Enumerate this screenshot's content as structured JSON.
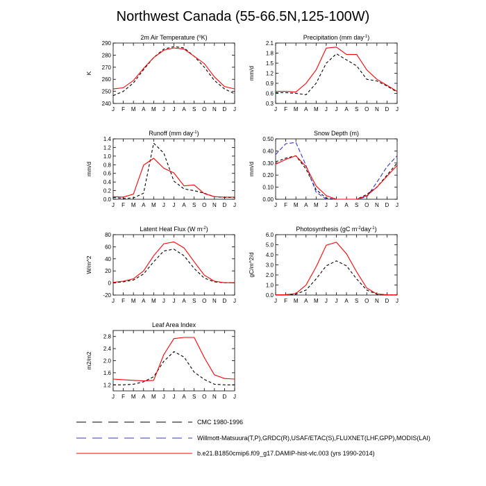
{
  "title": "Northwest Canada (55-66.5N,125-100W)",
  "legend": [
    {
      "label": "CMC 1980-1996",
      "color": "#000000",
      "dash": "6,4"
    },
    {
      "label": "Willmott-Matsuura(T,P),GRDC(R),USAF/ETAC(S),FLUXNET(LHF,GPP),MODIS(LAI)",
      "color": "#3333cc",
      "dash": "6,4"
    },
    {
      "label": "b.e21.B1850cmip6.f09_g17.DAMIP-hist-vlc.003 (yrs 1990-2014)",
      "color": "#ff0000",
      "dash": ""
    }
  ],
  "chart_data": [
    {
      "type": "line",
      "title": "2m Air Temperature (°K)",
      "ylabel": "K",
      "categories": [
        "J",
        "F",
        "M",
        "A",
        "M",
        "J",
        "J",
        "A",
        "S",
        "O",
        "N",
        "D",
        "J"
      ],
      "ylim": [
        240,
        290
      ],
      "yticks": [
        "240",
        "250",
        "260",
        "270",
        "280",
        "290"
      ],
      "series": [
        {
          "style": "obs",
          "color": "#000000",
          "dash": "4,3",
          "values": [
            246.5,
            250,
            257,
            268,
            278,
            285,
            287,
            286,
            279,
            270,
            259,
            252,
            248
          ]
        },
        {
          "style": "model",
          "color": "#ff0000",
          "dash": "",
          "values": [
            252,
            253,
            259,
            269,
            278,
            284,
            286,
            285,
            279,
            273,
            262,
            254,
            252
          ]
        }
      ]
    },
    {
      "type": "line",
      "title": "Precipitation (mm day-1)",
      "ylabel": "mm/d",
      "categories": [
        "J",
        "F",
        "M",
        "A",
        "M",
        "J",
        "J",
        "A",
        "S",
        "O",
        "N",
        "D",
        "J"
      ],
      "ylim": [
        0.3,
        2.1
      ],
      "yticks": [
        "0.3",
        "0.6",
        "0.9",
        "1.2",
        "1.5",
        "1.8",
        "2.1"
      ],
      "series": [
        {
          "style": "obs",
          "color": "#000000",
          "dash": "4,3",
          "values": [
            0.62,
            0.62,
            0.6,
            0.56,
            0.9,
            1.5,
            1.78,
            1.6,
            1.42,
            1.02,
            0.97,
            0.82,
            0.64
          ]
        },
        {
          "style": "model",
          "color": "#ff0000",
          "dash": "",
          "values": [
            0.66,
            0.66,
            0.64,
            0.9,
            1.3,
            1.95,
            1.98,
            1.76,
            1.76,
            1.3,
            1.02,
            0.84,
            0.66
          ]
        }
      ]
    },
    {
      "type": "line",
      "title": "Runoff (mm day-1)",
      "ylabel": "mm/d",
      "categories": [
        "J",
        "F",
        "M",
        "A",
        "M",
        "J",
        "J",
        "A",
        "S",
        "O",
        "N",
        "D",
        "J"
      ],
      "ylim": [
        0,
        1.4
      ],
      "yticks": [
        "0.0",
        "0.2",
        "0.4",
        "0.6",
        "0.8",
        "1.0",
        "1.2",
        "1.4"
      ],
      "series": [
        {
          "style": "obs",
          "color": "#000000",
          "dash": "4,3",
          "values": [
            0.04,
            0.02,
            0.03,
            0.14,
            1.3,
            1.07,
            0.42,
            0.24,
            0.2,
            0.14,
            0.06,
            0.04,
            0.04
          ]
        },
        {
          "style": "model",
          "color": "#ff0000",
          "dash": "",
          "values": [
            0.06,
            0.05,
            0.12,
            0.79,
            0.95,
            0.72,
            0.61,
            0.31,
            0.33,
            0.13,
            0.06,
            0.05,
            0.05
          ]
        }
      ]
    },
    {
      "type": "line",
      "title": "Snow Depth (m)",
      "ylabel": "mm/d",
      "categories": [
        "J",
        "F",
        "M",
        "A",
        "M",
        "J",
        "J",
        "A",
        "S",
        "O",
        "N",
        "D",
        "J"
      ],
      "ylim": [
        0,
        0.5
      ],
      "yticks": [
        "0.00",
        "0.10",
        "0.20",
        "0.30",
        "0.40",
        "0.50"
      ],
      "series": [
        {
          "style": "obs",
          "color": "#000000",
          "dash": "4,3",
          "values": [
            0.31,
            0.34,
            0.36,
            0.25,
            0.08,
            0.01,
            0.0,
            0.0,
            0.0,
            0.04,
            0.1,
            0.2,
            0.3
          ]
        },
        {
          "style": "obs2",
          "color": "#3333cc",
          "dash": "6,3",
          "values": [
            0.37,
            0.46,
            0.47,
            0.28,
            0.06,
            0.0,
            0.0,
            0.0,
            0.0,
            0.02,
            0.14,
            0.27,
            0.36
          ]
        },
        {
          "style": "model",
          "color": "#ff0000",
          "dash": "",
          "values": [
            0.29,
            0.33,
            0.36,
            0.27,
            0.11,
            0.03,
            0.0,
            0.0,
            0.0,
            0.03,
            0.1,
            0.19,
            0.28
          ]
        }
      ]
    },
    {
      "type": "line",
      "title": "Latent Heat Flux (W m-2)",
      "ylabel": "W/m^2",
      "categories": [
        "J",
        "F",
        "M",
        "A",
        "M",
        "J",
        "J",
        "A",
        "S",
        "O",
        "N",
        "D",
        "J"
      ],
      "ylim": [
        -20,
        80
      ],
      "yticks": [
        "-20",
        "0",
        "20",
        "40",
        "60",
        "80"
      ],
      "series": [
        {
          "style": "obs",
          "color": "#000000",
          "dash": "4,3",
          "values": [
            0.5,
            2,
            5,
            15,
            35,
            53,
            56,
            45,
            24,
            8,
            2,
            0.5,
            0.5
          ]
        },
        {
          "style": "model",
          "color": "#ff0000",
          "dash": "",
          "values": [
            1,
            3,
            7,
            20,
            45,
            65,
            68,
            58,
            35,
            13,
            3,
            0.5,
            0.5
          ]
        }
      ]
    },
    {
      "type": "line",
      "title": "Photosynthesis (gC m-2day-1)",
      "ylabel": "gC/m^2/d",
      "categories": [
        "J",
        "F",
        "M",
        "A",
        "M",
        "J",
        "J",
        "A",
        "S",
        "O",
        "N",
        "D",
        "J"
      ],
      "ylim": [
        0,
        6
      ],
      "yticks": [
        "0.0",
        "1.0",
        "2.0",
        "3.0",
        "4.0",
        "5.0",
        "6.0"
      ],
      "series": [
        {
          "style": "obs",
          "color": "#000000",
          "dash": "4,3",
          "values": [
            0.02,
            0.03,
            0.08,
            0.5,
            1.6,
            2.9,
            3.4,
            2.9,
            1.6,
            0.5,
            0.08,
            0.02,
            0.02
          ]
        },
        {
          "style": "model",
          "color": "#ff0000",
          "dash": "",
          "values": [
            0.02,
            0.04,
            0.15,
            1.0,
            2.8,
            4.95,
            5.25,
            4.1,
            2.3,
            0.7,
            0.12,
            0.03,
            0.02
          ]
        }
      ]
    },
    {
      "type": "line",
      "title": "Leaf Area Index",
      "ylabel": "m2/m2",
      "categories": [
        "J",
        "F",
        "M",
        "A",
        "M",
        "J",
        "J",
        "A",
        "S",
        "O",
        "N",
        "D",
        "J"
      ],
      "ylim": [
        1.0,
        3.0
      ],
      "yticks": [
        "1.2",
        "1.6",
        "2.0",
        "2.4",
        "2.8"
      ],
      "series": [
        {
          "style": "obs",
          "color": "#000000",
          "dash": "4,3",
          "values": [
            1.2,
            1.2,
            1.22,
            1.3,
            1.47,
            1.98,
            2.3,
            2.12,
            1.62,
            1.38,
            1.22,
            1.2,
            1.2
          ]
        },
        {
          "style": "model",
          "color": "#ff0000",
          "dash": "",
          "values": [
            1.39,
            1.37,
            1.35,
            1.33,
            1.35,
            2.2,
            2.73,
            2.77,
            2.77,
            2.1,
            1.53,
            1.41,
            1.39
          ]
        }
      ]
    }
  ]
}
